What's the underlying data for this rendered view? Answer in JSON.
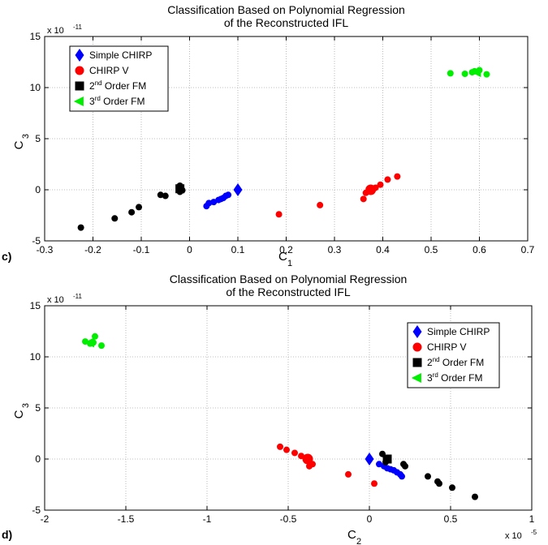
{
  "chart_data": [
    {
      "type": "scatter",
      "panel_label": "c)",
      "title": "Classification Based on Polynomial Regression",
      "subtitle": "of the Reconstructed IFL",
      "xlabel": "C",
      "xlabel_sub": "1",
      "ylabel": "C",
      "ylabel_sub": "3",
      "xlim": [
        -0.3,
        0.7
      ],
      "ylim": [
        -5,
        15
      ],
      "y_multiplier": "x 10",
      "y_multiplier_exp": "-11",
      "grid": true,
      "legend_placement": "top-left",
      "xticks": [
        -0.3,
        -0.2,
        -0.1,
        0,
        0.1,
        0.2,
        0.3,
        0.4,
        0.5,
        0.6,
        0.7
      ],
      "xtick_labels": [
        "-0.3",
        "-0.2",
        "-0.1",
        "0",
        "0.1",
        "0.2",
        "0.3",
        "0.4",
        "0.5",
        "0.6",
        "0.7"
      ],
      "yticks": [
        -5,
        0,
        5,
        10,
        15
      ],
      "ytick_labels": [
        "-5",
        "0",
        "5",
        "10",
        "15"
      ],
      "series": [
        {
          "name": "Simple CHIRP",
          "marker": "diamond",
          "color": "#0000ff",
          "centroid": [
            0.1,
            0.0
          ],
          "points": [
            [
              0.035,
              -1.6
            ],
            [
              0.04,
              -1.3
            ],
            [
              0.05,
              -1.2
            ],
            [
              0.06,
              -1.0
            ],
            [
              0.065,
              -0.9
            ],
            [
              0.07,
              -0.8
            ],
            [
              0.075,
              -0.6
            ],
            [
              0.08,
              -0.5
            ]
          ]
        },
        {
          "name": "CHIRP V",
          "marker": "circle",
          "color": "#ff0000",
          "centroid": [
            0.375,
            0.0
          ],
          "points": [
            [
              0.185,
              -2.4
            ],
            [
              0.27,
              -1.5
            ],
            [
              0.36,
              -0.9
            ],
            [
              0.365,
              -0.3
            ],
            [
              0.385,
              0.2
            ],
            [
              0.395,
              0.5
            ],
            [
              0.41,
              1.0
            ],
            [
              0.43,
              1.3
            ]
          ]
        },
        {
          "name": "2",
          "name_sup": "nd",
          "name_rest": " Order FM",
          "marker": "square",
          "color": "#000000",
          "centroid": [
            -0.02,
            0.1
          ],
          "points": [
            [
              -0.225,
              -3.7
            ],
            [
              -0.155,
              -2.8
            ],
            [
              -0.12,
              -2.2
            ],
            [
              -0.105,
              -1.7
            ],
            [
              -0.06,
              -0.5
            ],
            [
              -0.05,
              -0.6
            ],
            [
              -0.02,
              0.4
            ],
            [
              -0.02,
              -0.2
            ],
            [
              -0.015,
              -0.05
            ]
          ]
        },
        {
          "name": "3",
          "name_sup": "rd",
          "name_rest": " Order FM",
          "marker": "triangle-left",
          "color": "#00ee00",
          "centroid": [
            0.595,
            11.5
          ],
          "points": [
            [
              0.54,
              11.4
            ],
            [
              0.57,
              11.35
            ],
            [
              0.585,
              11.5
            ],
            [
              0.59,
              11.6
            ],
            [
              0.6,
              11.7
            ],
            [
              0.615,
              11.3
            ]
          ]
        }
      ]
    },
    {
      "type": "scatter",
      "panel_label": "d)",
      "title": "Classification Based on Polynomial Regression",
      "subtitle": "of the Reconstructed IFL",
      "xlabel": "C",
      "xlabel_sub": "2",
      "ylabel": "C",
      "ylabel_sub": "3",
      "xlim": [
        -2,
        1
      ],
      "ylim": [
        -5,
        15
      ],
      "x_multiplier": "x 10",
      "x_multiplier_exp": "-5",
      "y_multiplier": "x 10",
      "y_multiplier_exp": "-11",
      "grid": true,
      "legend_placement": "right",
      "xticks": [
        -2,
        -1.5,
        -1,
        -0.5,
        0,
        0.5,
        1
      ],
      "xtick_labels": [
        "-2",
        "-1.5",
        "-1",
        "-0.5",
        "0",
        "0.5",
        "1"
      ],
      "yticks": [
        -5,
        0,
        5,
        10,
        15
      ],
      "ytick_labels": [
        "-5",
        "0",
        "5",
        "10",
        "15"
      ],
      "series": [
        {
          "name": "Simple CHIRP",
          "marker": "diamond",
          "color": "#0000ff",
          "centroid": [
            0.0,
            0.0
          ],
          "points": [
            [
              0.06,
              -0.5
            ],
            [
              0.09,
              -0.7
            ],
            [
              0.11,
              -0.9
            ],
            [
              0.13,
              -1.0
            ],
            [
              0.15,
              -1.1
            ],
            [
              0.17,
              -1.3
            ],
            [
              0.19,
              -1.5
            ],
            [
              0.2,
              -1.7
            ]
          ]
        },
        {
          "name": "CHIRP V",
          "marker": "circle",
          "color": "#ff0000",
          "centroid": [
            -0.38,
            0.0
          ],
          "points": [
            [
              -0.55,
              1.2
            ],
            [
              -0.51,
              0.9
            ],
            [
              -0.46,
              0.6
            ],
            [
              -0.42,
              0.3
            ],
            [
              -0.37,
              -0.7
            ],
            [
              -0.35,
              -0.5
            ],
            [
              -0.13,
              -1.5
            ],
            [
              0.03,
              -2.4
            ]
          ]
        },
        {
          "name": "2",
          "name_sup": "nd",
          "name_rest": " Order FM",
          "marker": "square",
          "color": "#000000",
          "centroid": [
            0.11,
            0.0
          ],
          "points": [
            [
              0.08,
              0.5
            ],
            [
              0.1,
              -0.3
            ],
            [
              0.21,
              -0.5
            ],
            [
              0.22,
              -0.7
            ],
            [
              0.36,
              -1.7
            ],
            [
              0.42,
              -2.2
            ],
            [
              0.43,
              -2.4
            ],
            [
              0.51,
              -2.8
            ],
            [
              0.65,
              -3.7
            ]
          ]
        },
        {
          "name": "3",
          "name_sup": "rd",
          "name_rest": " Order FM",
          "marker": "triangle-left",
          "color": "#00ee00",
          "centroid": [
            -1.72,
            11.4
          ],
          "points": [
            [
              -1.75,
              11.5
            ],
            [
              -1.72,
              11.3
            ],
            [
              -1.7,
              11.4
            ],
            [
              -1.69,
              12.0
            ],
            [
              -1.65,
              11.1
            ]
          ]
        }
      ]
    }
  ]
}
